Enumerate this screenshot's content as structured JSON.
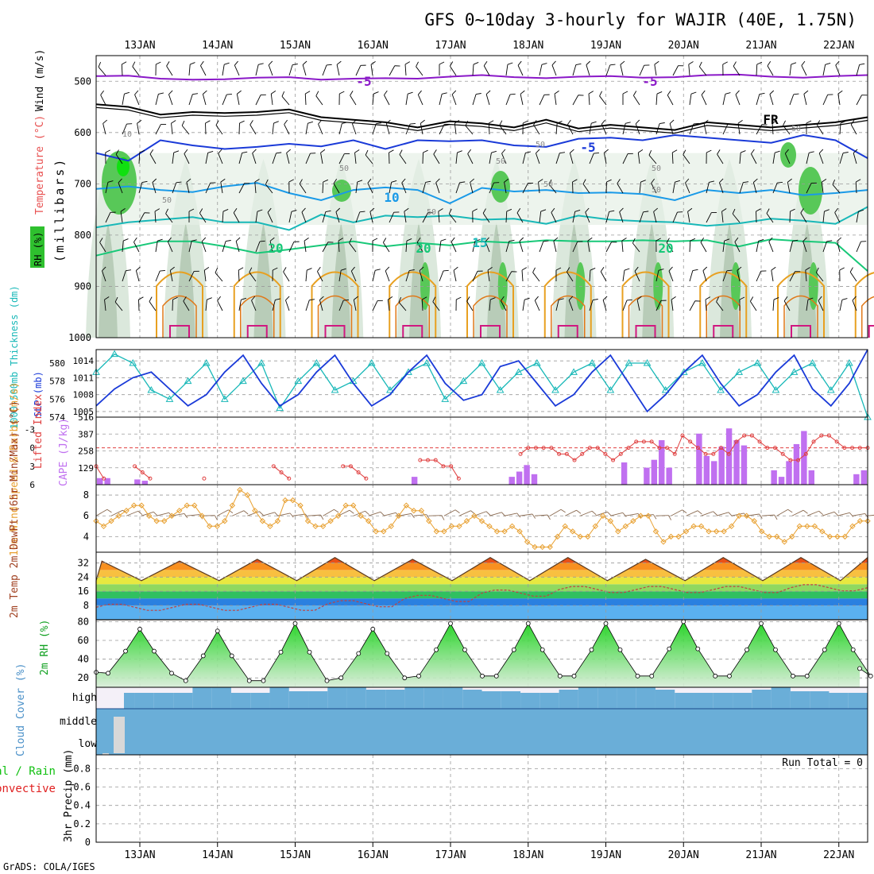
{
  "title": "GFS 0~10day 3-hourly for WAJIR (40E, 1.75N)",
  "credit": "GrADS: COLA/IGES",
  "dates": [
    "13JAN",
    "14JAN",
    "15JAN",
    "16JAN",
    "17JAN",
    "18JAN",
    "19JAN",
    "20JAN",
    "21JAN",
    "22JAN"
  ],
  "colors": {
    "grid": "#9a9a9a",
    "purple": "#8a18c8",
    "blue": "#1a3ad8",
    "sky": "#1a9ae8",
    "teal": "#18b8b8",
    "green": "#18c878",
    "orange": "#e8a020",
    "magenta": "#d01880",
    "cape": "#c070f0",
    "li": "#e04040",
    "wind": "#e8a030",
    "cloud": "#6aaed8",
    "rh": "#10a020"
  },
  "chart_data": [
    {
      "id": "upper_air",
      "type": "contour",
      "ylabel_parts": {
        "wind": "Wind (m/s)",
        "temp": "Temperature (°C)",
        "rh": "RH (%)",
        "mb": "(millibars)"
      },
      "y_ticks": [
        500,
        600,
        700,
        800,
        900,
        1000
      ],
      "ylim": [
        450,
        1000
      ],
      "temperature_labels": [
        "-5",
        "-5",
        "FR",
        "-5",
        "10",
        "20",
        "20",
        "15",
        "20"
      ],
      "rh_labels": [
        "10",
        "50",
        "50",
        "50",
        "50",
        "50",
        "50",
        "50",
        "50",
        "50"
      ],
      "isotherms": [
        {
          "label": "-5 (upper)",
          "color": "purple",
          "levels": [
            490,
            489,
            495,
            497,
            496,
            493,
            492,
            497,
            495,
            494,
            495,
            491,
            488,
            492,
            494,
            491,
            490,
            493,
            492,
            488,
            487,
            491,
            493,
            490,
            488
          ]
        },
        {
          "label": "FR",
          "color": "black",
          "levels": [
            545,
            550,
            565,
            560,
            562,
            560,
            555,
            570,
            575,
            580,
            590,
            578,
            582,
            590,
            575,
            592,
            585,
            590,
            595,
            580,
            585,
            590,
            585,
            580,
            570
          ]
        },
        {
          "label": "-5",
          "color": "blue",
          "levels": [
            640,
            655,
            615,
            625,
            632,
            628,
            622,
            627,
            615,
            632,
            615,
            617,
            615,
            625,
            628,
            612,
            610,
            615,
            605,
            610,
            615,
            620,
            605,
            615,
            650
          ]
        },
        {
          "label": "10",
          "color": "sky",
          "levels": [
            710,
            705,
            712,
            716,
            705,
            698,
            718,
            732,
            712,
            707,
            712,
            738,
            708,
            715,
            712,
            718,
            717,
            720,
            732,
            712,
            718,
            712,
            722,
            718,
            712
          ]
        },
        {
          "label": "15",
          "color": "teal",
          "levels": [
            785,
            775,
            770,
            765,
            775,
            775,
            790,
            760,
            775,
            762,
            765,
            762,
            770,
            768,
            778,
            762,
            770,
            773,
            775,
            782,
            777,
            768,
            772,
            778,
            745
          ]
        },
        {
          "label": "20",
          "color": "green",
          "levels": [
            840,
            825,
            812,
            812,
            822,
            835,
            828,
            820,
            812,
            822,
            815,
            820,
            812,
            815,
            810,
            812,
            812,
            810,
            812,
            810,
            822,
            808,
            812,
            815,
            870
          ]
        }
      ]
    },
    {
      "id": "slp_thickness",
      "type": "line",
      "ylabel_left": "1000-500mb Thickness (dm)",
      "ylabel_right": "SLP (mb)",
      "y_ticks_left": [
        574,
        576,
        578,
        580
      ],
      "y_ticks_right": [
        1005,
        1008,
        1011,
        1014
      ],
      "series": [
        {
          "name": "Thickness",
          "color": "teal",
          "ylim": [
            574,
            581.5
          ],
          "values": [
            579,
            581,
            580,
            577,
            576,
            578,
            580,
            576,
            578,
            580,
            575,
            578,
            580,
            577,
            578,
            580,
            577,
            579,
            580,
            576,
            578,
            580,
            577,
            579,
            580,
            577,
            579,
            580,
            577,
            580,
            580,
            577,
            579,
            580,
            577,
            579,
            580,
            577,
            579,
            580,
            577,
            580,
            574
          ]
        },
        {
          "name": "SLP",
          "color": "blue",
          "ylim": [
            1004,
            1016
          ],
          "values": [
            1006,
            1009,
            1011,
            1012,
            1009,
            1006,
            1008,
            1012,
            1015,
            1010,
            1006,
            1008,
            1012,
            1015,
            1010,
            1006,
            1008,
            1012,
            1015,
            1010,
            1007,
            1008,
            1013,
            1014,
            1010,
            1006,
            1008,
            1012,
            1015,
            1010,
            1005,
            1008,
            1012,
            1015,
            1010,
            1006,
            1008,
            1012,
            1015,
            1009,
            1006,
            1010,
            1016
          ]
        }
      ]
    },
    {
      "id": "cape_li",
      "type": "bar+line",
      "ylabel_left": "Lifted Index",
      "ylabel_right": "CAPE (J/kg)",
      "li_ticks": [
        "-3",
        "0",
        "3",
        "6"
      ],
      "cape_ticks": [
        "129",
        "258",
        "387",
        "516"
      ],
      "li_ylim": [
        -5,
        6
      ],
      "cape_ylim": [
        0,
        516
      ],
      "li_values": [
        3,
        5,
        6,
        6,
        6,
        3,
        4,
        5,
        6,
        6,
        6,
        6,
        6,
        6,
        5,
        6,
        6,
        6,
        6,
        6,
        6,
        6,
        6,
        3,
        4,
        5,
        6,
        6,
        6,
        6,
        6,
        6,
        3,
        3,
        4,
        5,
        6,
        6,
        6,
        6,
        6,
        6,
        2,
        2,
        2,
        3,
        3,
        5,
        6,
        6,
        6,
        6,
        6,
        6,
        6,
        1,
        0,
        0,
        0,
        0,
        1,
        1,
        2,
        1,
        0,
        0,
        1,
        2,
        1,
        0,
        -1,
        -1,
        -1,
        0,
        0,
        1,
        -2,
        -1,
        0,
        1,
        1,
        0,
        1,
        -1,
        -2,
        -2,
        -1,
        0,
        0,
        1,
        2,
        2,
        1,
        -1,
        -2,
        -2,
        -1,
        0,
        0,
        0,
        0
      ],
      "cape_values": [
        50,
        50,
        0,
        0,
        0,
        40,
        30,
        0,
        0,
        0,
        0,
        0,
        0,
        0,
        0,
        0,
        0,
        0,
        0,
        0,
        0,
        0,
        0,
        0,
        0,
        0,
        0,
        0,
        0,
        0,
        0,
        0,
        0,
        0,
        0,
        0,
        0,
        0,
        0,
        0,
        0,
        0,
        60,
        0,
        0,
        0,
        0,
        0,
        0,
        0,
        0,
        0,
        0,
        0,
        0,
        60,
        100,
        150,
        80,
        0,
        0,
        0,
        0,
        0,
        0,
        0,
        0,
        0,
        0,
        0,
        170,
        0,
        0,
        130,
        190,
        340,
        130,
        0,
        0,
        0,
        390,
        220,
        180,
        290,
        430,
        340,
        300,
        0,
        0,
        0,
        110,
        60,
        180,
        310,
        410,
        110,
        0,
        0,
        0,
        0,
        0,
        80,
        110
      ]
    },
    {
      "id": "wind10m",
      "type": "line",
      "ylabel": "10m Wind Speed & Barbs (m/s)",
      "y_ticks": [
        "4",
        "6",
        "8"
      ],
      "ylim": [
        2.5,
        9
      ],
      "values": [
        5.5,
        5,
        5.5,
        6,
        6.5,
        7,
        7,
        6,
        5.5,
        5.5,
        6,
        6.5,
        7,
        7,
        6,
        5,
        5,
        5.5,
        7,
        8.5,
        8,
        6.5,
        5.5,
        5,
        5.5,
        7.5,
        7.5,
        7,
        5.5,
        5,
        5,
        5.5,
        6,
        7,
        7,
        6,
        5.5,
        4.5,
        4.5,
        5,
        6,
        7,
        6.5,
        6.5,
        5.5,
        4.5,
        4.5,
        5,
        5,
        5.5,
        6,
        5.5,
        5,
        4.5,
        4.5,
        5,
        4.5,
        3.5,
        3,
        3,
        3,
        4,
        5,
        4.5,
        4,
        4,
        5,
        6,
        5.5,
        4.5,
        5,
        5.5,
        6,
        6,
        4.5,
        3.5,
        4,
        4,
        4.5,
        5,
        5,
        4.5,
        4.5,
        4.5,
        5,
        6,
        6,
        5.5,
        4.5,
        4,
        4,
        3.5,
        4,
        5,
        5,
        5,
        4.5,
        4,
        4,
        4,
        5,
        5.5,
        5.5
      ]
    },
    {
      "id": "temp2m",
      "type": "area",
      "ylabel": "2m Temp 2m DewPt (6hr Min/Max) (°C)",
      "y_ticks": [
        "8",
        "16",
        "24",
        "32"
      ],
      "ylim": [
        0,
        38
      ],
      "temperature_max": [
        33,
        34,
        35,
        34,
        35,
        35,
        34,
        35,
        35,
        35
      ],
      "temperature_min": [
        22,
        22,
        22,
        22,
        22,
        22,
        22,
        22,
        22,
        22
      ],
      "dewpoint_min": [
        7,
        7,
        7,
        9,
        12,
        15,
        17,
        17,
        17,
        18
      ]
    },
    {
      "id": "rh2m",
      "type": "area",
      "ylabel": "2m RH (%)",
      "y_ticks": [
        "20",
        "40",
        "60",
        "80"
      ],
      "ylim": [
        10,
        82
      ],
      "peaks": [
        72,
        70,
        78,
        72,
        78,
        78,
        78,
        80,
        78,
        78
      ],
      "troughs": [
        25,
        17,
        17,
        20,
        22,
        22,
        22,
        22,
        22,
        22
      ]
    },
    {
      "id": "clouds",
      "type": "bar",
      "ylabel": "Cloud Cover (%)",
      "layers": [
        "high",
        "middle",
        "low"
      ]
    },
    {
      "id": "precip",
      "type": "bar",
      "ylabel_left": "Total / Rain",
      "ylabel_right": "Convective",
      "ylabel": "3hr Precip (mm)",
      "y_ticks": [
        "0",
        "0.2",
        "0.4",
        "0.6",
        "0.8"
      ],
      "ylim": [
        0,
        0.95
      ],
      "run_total": "Run Total = 0"
    }
  ]
}
